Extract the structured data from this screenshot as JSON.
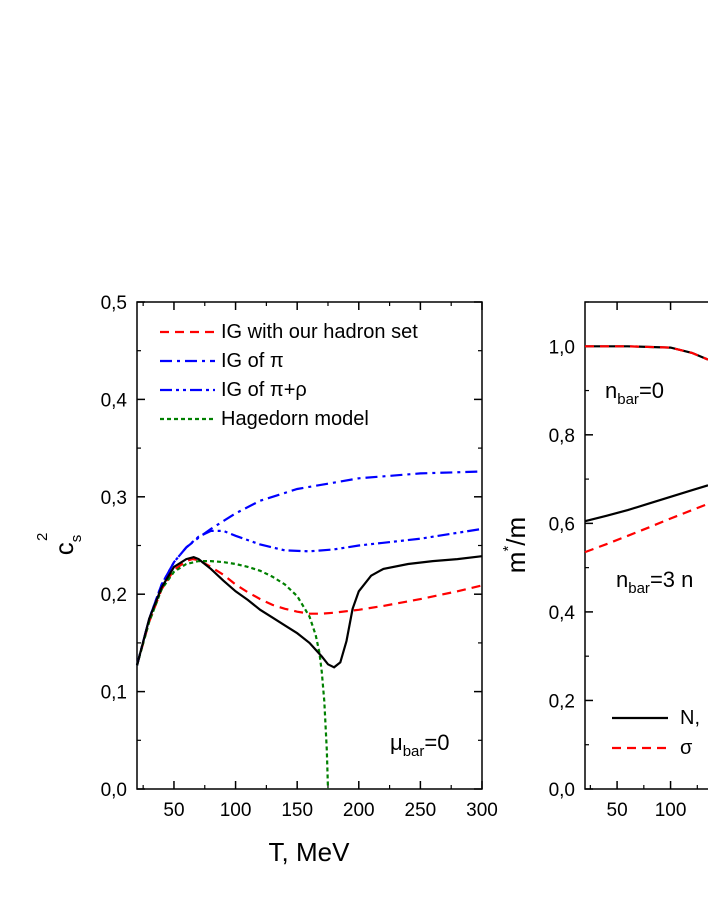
{
  "chart_data": [
    {
      "type": "line",
      "xlabel": "T, MeV",
      "ylabel_main": "c",
      "ylabel_sub": "s",
      "ylabel_sup": "2",
      "xlim": [
        20,
        300
      ],
      "ylim": [
        0,
        0.5
      ],
      "xticks": [
        50,
        100,
        150,
        200,
        250,
        300
      ],
      "yticks": [
        0.0,
        0.1,
        0.2,
        0.3,
        0.4,
        0.5
      ],
      "ytick_labels": [
        "0,0",
        "0,1",
        "0,2",
        "0,3",
        "0,4",
        "0,5"
      ],
      "annotation": {
        "main": "μ",
        "sub": "bar",
        "tail": "=0"
      },
      "legend_position": "top-left",
      "series": [
        {
          "name": "IG with our hadron set",
          "color": "#ff0000",
          "dash": "dash",
          "x": [
            20,
            30,
            40,
            50,
            60,
            65,
            70,
            80,
            90,
            100,
            110,
            120,
            130,
            140,
            150,
            160,
            170,
            180,
            200,
            220,
            250,
            280,
            300
          ],
          "y": [
            0.127,
            0.172,
            0.205,
            0.225,
            0.234,
            0.236,
            0.235,
            0.228,
            0.22,
            0.21,
            0.202,
            0.195,
            0.189,
            0.185,
            0.182,
            0.18,
            0.18,
            0.181,
            0.184,
            0.188,
            0.195,
            0.203,
            0.209
          ]
        },
        {
          "name": "IG of π",
          "color": "#0000ff",
          "dash": "dashdot",
          "x": [
            20,
            30,
            40,
            50,
            60,
            70,
            80,
            100,
            120,
            150,
            200,
            250,
            300
          ],
          "y": [
            0.127,
            0.175,
            0.21,
            0.233,
            0.248,
            0.258,
            0.267,
            0.283,
            0.296,
            0.308,
            0.319,
            0.324,
            0.326
          ]
        },
        {
          "name": "IG of π+ρ",
          "color": "#0000ff",
          "dash": "dashdotdot",
          "x": [
            20,
            30,
            40,
            50,
            60,
            70,
            80,
            90,
            100,
            120,
            140,
            160,
            180,
            200,
            250,
            300
          ],
          "y": [
            0.127,
            0.175,
            0.21,
            0.233,
            0.248,
            0.259,
            0.265,
            0.265,
            0.26,
            0.251,
            0.245,
            0.244,
            0.246,
            0.25,
            0.257,
            0.267
          ]
        },
        {
          "name": "Hagedorn model",
          "color": "#008000",
          "dash": "dot",
          "x": [
            20,
            30,
            40,
            50,
            60,
            70,
            80,
            90,
            100,
            110,
            120,
            130,
            140,
            150,
            160,
            165,
            168,
            170,
            172,
            174,
            175
          ],
          "y": [
            0.127,
            0.172,
            0.205,
            0.223,
            0.231,
            0.234,
            0.234,
            0.233,
            0.231,
            0.228,
            0.224,
            0.218,
            0.21,
            0.198,
            0.177,
            0.158,
            0.14,
            0.12,
            0.09,
            0.04,
            0.0
          ]
        },
        {
          "name": "",
          "color": "#000000",
          "dash": "solid",
          "x": [
            20,
            30,
            40,
            50,
            60,
            66,
            70,
            80,
            90,
            100,
            110,
            120,
            130,
            140,
            150,
            160,
            170,
            175,
            180,
            185,
            190,
            195,
            200,
            210,
            220,
            240,
            260,
            280,
            300
          ],
          "y": [
            0.127,
            0.175,
            0.207,
            0.228,
            0.236,
            0.238,
            0.236,
            0.226,
            0.214,
            0.203,
            0.194,
            0.184,
            0.176,
            0.168,
            0.16,
            0.15,
            0.136,
            0.128,
            0.125,
            0.13,
            0.152,
            0.185,
            0.203,
            0.219,
            0.226,
            0.231,
            0.234,
            0.236,
            0.239
          ]
        }
      ]
    },
    {
      "type": "line",
      "ylabel_main": "m",
      "ylabel_sup": "*",
      "ylabel_tail": "/m",
      "xlim": [
        20,
        135
      ],
      "ylim": [
        0,
        1.1
      ],
      "xticks": [
        50,
        100
      ],
      "yticks": [
        0.0,
        0.2,
        0.4,
        0.6,
        0.8,
        1.0
      ],
      "ytick_labels": [
        "0,0",
        "0,2",
        "0,4",
        "0,6",
        "0,8",
        "1,0"
      ],
      "annotations": [
        {
          "main": "n",
          "sub": "bar",
          "tail": "=0"
        },
        {
          "main": "n",
          "sub": "bar",
          "tail": "=3 n"
        }
      ],
      "legend_position": "bottom-left",
      "series": [
        {
          "name": "N,",
          "color": "#000000",
          "dash": "solid",
          "x": [
            20,
            60,
            100,
            120,
            135
          ],
          "y": [
            1.0,
            1.0,
            0.997,
            0.985,
            0.97
          ]
        },
        {
          "name": "σ",
          "color": "#ff0000",
          "dash": "dash",
          "x": [
            20,
            60,
            100,
            120,
            135
          ],
          "y": [
            1.0,
            1.0,
            0.997,
            0.985,
            0.97
          ]
        },
        {
          "name": "",
          "color": "#000000",
          "dash": "solid",
          "x": [
            20,
            40,
            60,
            80,
            100,
            120,
            135
          ],
          "y": [
            0.605,
            0.617,
            0.63,
            0.645,
            0.66,
            0.675,
            0.686
          ]
        },
        {
          "name": "",
          "color": "#ff0000",
          "dash": "dash",
          "x": [
            20,
            40,
            60,
            80,
            100,
            120,
            135
          ],
          "y": [
            0.535,
            0.553,
            0.572,
            0.591,
            0.611,
            0.63,
            0.644
          ]
        }
      ]
    }
  ]
}
